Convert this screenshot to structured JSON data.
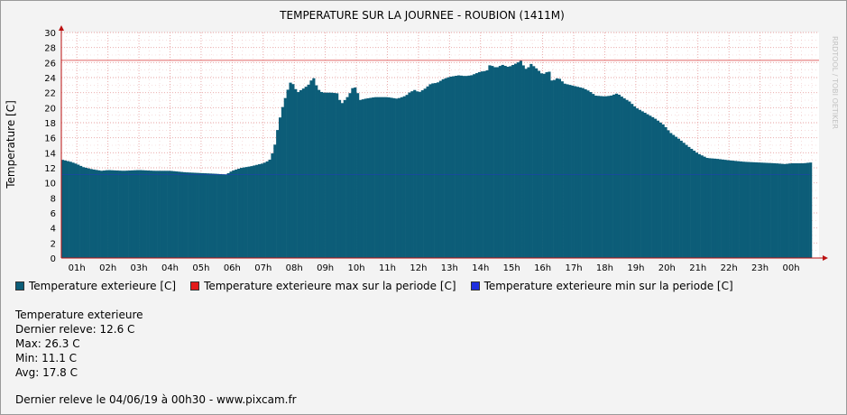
{
  "colors": {
    "series": "#0c5d78",
    "max_line": "#e06666",
    "min_line": "#1f3fb5",
    "grid": "#e7a0a0",
    "axis": "#b11",
    "background": "#ffffff"
  },
  "legend": [
    {
      "label": "Temperature exterieure [C]",
      "color": "#0c5d78"
    },
    {
      "label": "Temperature exterieure max sur la periode [C]",
      "color": "#e31b1b"
    },
    {
      "label": "Temperature exterieure min sur la periode [C]",
      "color": "#1f2fe0"
    }
  ],
  "stats": {
    "title": "Temperature exterieure",
    "last": "Dernier releve: 12.6 C",
    "max": "Max: 26.3 C",
    "min": "Min: 11.1 C",
    "avg": "Avg: 17.8 C"
  },
  "footer": "Dernier releve le 04/06/19 à 00h30 - www.pixcam.fr",
  "watermark": "RRDTOOL / TOBI OETIKER",
  "chart_data": {
    "type": "area",
    "title": "TEMPERATURE SUR LA JOURNEE - ROUBION (1411M)",
    "ylabel": "Temperature [C]",
    "xlabel": "",
    "ylim": [
      0,
      30
    ],
    "y_ticks": [
      "0",
      "2",
      "4",
      "6",
      "8",
      "10",
      "12",
      "14",
      "16",
      "18",
      "20",
      "22",
      "24",
      "26",
      "28",
      "30"
    ],
    "x_ticks": [
      "01h",
      "02h",
      "03h",
      "04h",
      "05h",
      "06h",
      "07h",
      "08h",
      "09h",
      "10h",
      "11h",
      "12h",
      "13h",
      "14h",
      "15h",
      "16h",
      "17h",
      "18h",
      "19h",
      "20h",
      "21h",
      "22h",
      "23h",
      "00h"
    ],
    "x_range_hours": [
      0.5,
      24.9
    ],
    "grid": true,
    "max_value": 26.3,
    "min_value": 11.1,
    "series": [
      {
        "name": "Temperature exterieure [C]",
        "points": [
          [
            0.5,
            13.1
          ],
          [
            0.8,
            12.8
          ],
          [
            1.0,
            12.5
          ],
          [
            1.2,
            12.1
          ],
          [
            1.5,
            11.8
          ],
          [
            1.8,
            11.6
          ],
          [
            2.0,
            11.7
          ],
          [
            2.5,
            11.6
          ],
          [
            3.0,
            11.7
          ],
          [
            3.5,
            11.6
          ],
          [
            4.0,
            11.6
          ],
          [
            4.5,
            11.4
          ],
          [
            5.0,
            11.3
          ],
          [
            5.5,
            11.2
          ],
          [
            5.8,
            11.1
          ],
          [
            6.0,
            11.6
          ],
          [
            6.3,
            12.0
          ],
          [
            6.6,
            12.2
          ],
          [
            7.0,
            12.6
          ],
          [
            7.2,
            13.0
          ],
          [
            7.35,
            14.5
          ],
          [
            7.5,
            18.0
          ],
          [
            7.65,
            20.5
          ],
          [
            7.8,
            22.5
          ],
          [
            7.9,
            23.6
          ],
          [
            8.0,
            22.8
          ],
          [
            8.1,
            22.0
          ],
          [
            8.2,
            22.3
          ],
          [
            8.35,
            22.7
          ],
          [
            8.5,
            23.2
          ],
          [
            8.6,
            24.2
          ],
          [
            8.75,
            22.5
          ],
          [
            8.9,
            22.0
          ],
          [
            9.2,
            22.0
          ],
          [
            9.4,
            21.9
          ],
          [
            9.5,
            20.4
          ],
          [
            9.6,
            20.9
          ],
          [
            9.75,
            21.6
          ],
          [
            9.9,
            22.8
          ],
          [
            10.0,
            22.6
          ],
          [
            10.1,
            21.0
          ],
          [
            10.3,
            21.2
          ],
          [
            10.6,
            21.4
          ],
          [
            11.0,
            21.4
          ],
          [
            11.3,
            21.2
          ],
          [
            11.4,
            21.3
          ],
          [
            11.6,
            21.6
          ],
          [
            11.7,
            22.0
          ],
          [
            11.9,
            22.4
          ],
          [
            12.0,
            22.0
          ],
          [
            12.2,
            22.5
          ],
          [
            12.4,
            23.2
          ],
          [
            12.6,
            23.3
          ],
          [
            12.8,
            23.8
          ],
          [
            13.0,
            24.1
          ],
          [
            13.3,
            24.3
          ],
          [
            13.5,
            24.2
          ],
          [
            13.7,
            24.3
          ],
          [
            14.0,
            24.8
          ],
          [
            14.2,
            24.9
          ],
          [
            14.3,
            25.7
          ],
          [
            14.5,
            25.3
          ],
          [
            14.7,
            25.7
          ],
          [
            14.9,
            25.4
          ],
          [
            15.0,
            25.6
          ],
          [
            15.2,
            26.0
          ],
          [
            15.3,
            26.3
          ],
          [
            15.4,
            25.4
          ],
          [
            15.5,
            25.0
          ],
          [
            15.6,
            25.9
          ],
          [
            15.8,
            25.2
          ],
          [
            16.0,
            24.4
          ],
          [
            16.2,
            24.9
          ],
          [
            16.3,
            23.5
          ],
          [
            16.5,
            24.0
          ],
          [
            16.7,
            23.2
          ],
          [
            17.0,
            22.9
          ],
          [
            17.3,
            22.6
          ],
          [
            17.5,
            22.2
          ],
          [
            17.7,
            21.6
          ],
          [
            18.0,
            21.5
          ],
          [
            18.2,
            21.6
          ],
          [
            18.4,
            21.9
          ],
          [
            18.6,
            21.3
          ],
          [
            18.8,
            20.8
          ],
          [
            19.0,
            20.0
          ],
          [
            19.3,
            19.3
          ],
          [
            19.6,
            18.6
          ],
          [
            19.9,
            17.7
          ],
          [
            20.1,
            16.7
          ],
          [
            20.4,
            15.8
          ],
          [
            20.7,
            14.8
          ],
          [
            21.0,
            13.9
          ],
          [
            21.3,
            13.3
          ],
          [
            21.6,
            13.2
          ],
          [
            22.0,
            13.0
          ],
          [
            22.5,
            12.8
          ],
          [
            23.0,
            12.7
          ],
          [
            23.5,
            12.6
          ],
          [
            23.8,
            12.5
          ],
          [
            24.0,
            12.6
          ],
          [
            24.4,
            12.6
          ],
          [
            24.6,
            12.7
          ]
        ]
      }
    ]
  }
}
